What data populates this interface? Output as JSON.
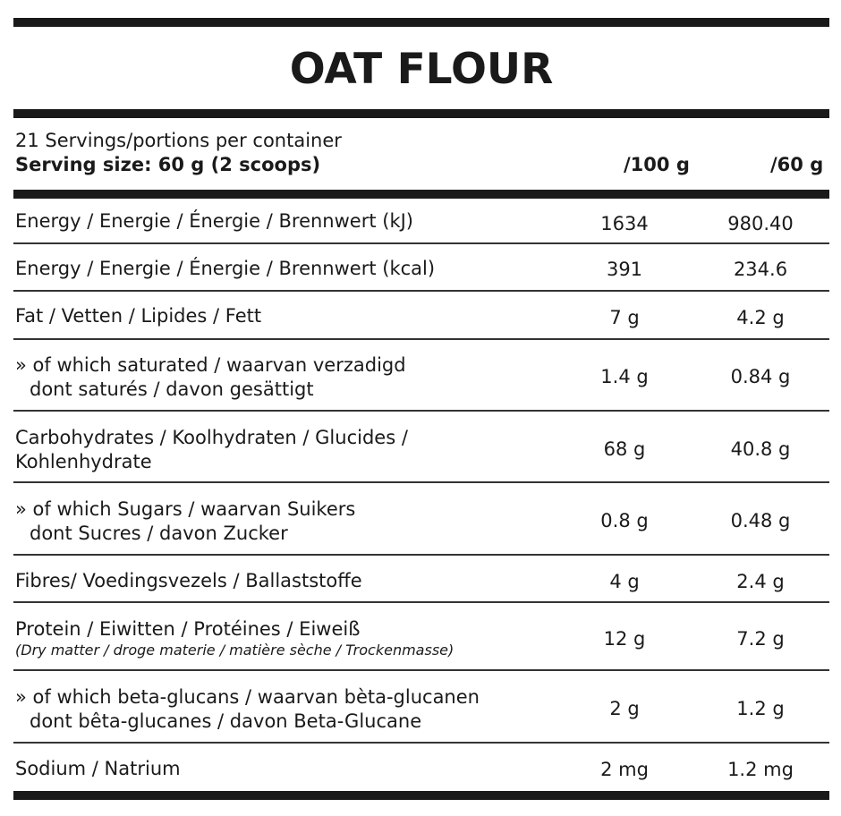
{
  "title": "OAT FLOUR",
  "servings_line": "21 Servings/portions per container",
  "serving_size": "Serving size: 60 g (2 scoops)",
  "col_100": "/100 g",
  "col_60": "/60 g",
  "rows": [
    {
      "label1": "Energy / Energie / Énergie / Brennwert (kJ)",
      "v100": "1634",
      "v60": "980.40"
    },
    {
      "label1": "Energy / Energie / Énergie / Brennwert (kcal)",
      "v100": "391",
      "v60": "234.6"
    },
    {
      "label1": "Fat / Vetten / Lipides / Fett",
      "v100": "7 g",
      "v60": "4.2 g"
    },
    {
      "label1": "» of which saturated / waarvan verzadigd",
      "label2": "dont saturés / davon gesättigt",
      "v100": "1.4 g",
      "v60": "0.84 g"
    },
    {
      "label1": "Carbohydrates / Koolhydraten / Glucides /",
      "label2": "Kohlenhydrate",
      "v100": "68 g",
      "v60": "40.8 g"
    },
    {
      "label1": "» of which Sugars / waarvan Suikers",
      "label2": "dont Sucres / davon Zucker",
      "v100": "0.8 g",
      "v60": "0.48 g"
    },
    {
      "label1": "Fibres/ Voedingsvezels / Ballaststoffe",
      "v100": "4 g",
      "v60": "2.4 g"
    },
    {
      "label1": "Protein / Eiwitten / Protéines / Eiweiß",
      "note": "(Dry matter / droge materie / matière sèche / Trockenmasse)",
      "v100": "12 g",
      "v60": "7.2 g"
    },
    {
      "label1": "» of which beta-glucans / waarvan bèta-glucanen",
      "label2": "dont bêta-glucanes / davon Beta-Glucane",
      "v100": "2 g",
      "v60": "1.2 g"
    },
    {
      "label1": "Sodium / Natrium",
      "v100": "2 mg",
      "v60": "1.2 mg"
    }
  ]
}
